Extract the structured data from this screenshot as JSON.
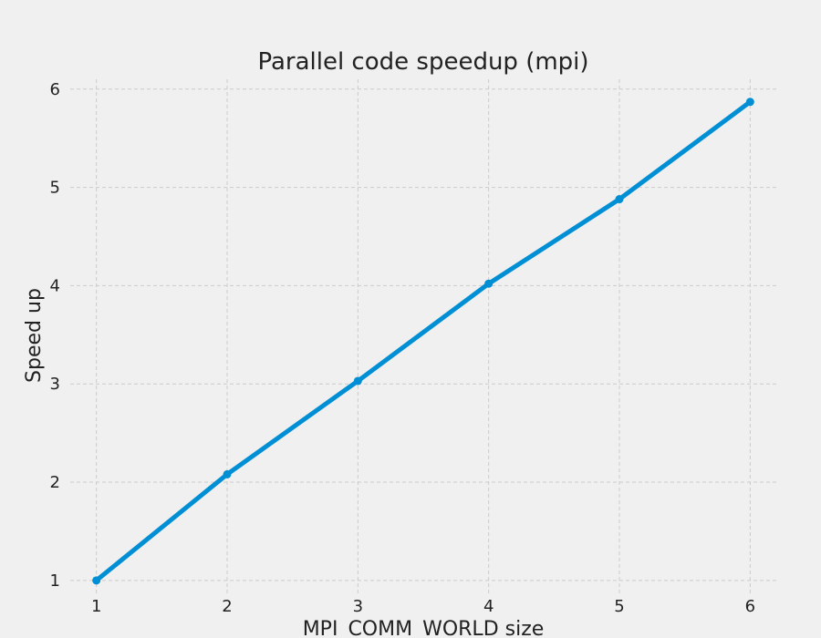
{
  "chart_data": {
    "type": "line",
    "title": "Parallel code speedup (mpi)",
    "xlabel": "MPI_COMM_WORLD size",
    "ylabel": "Speed up",
    "x": [
      1,
      2,
      3,
      4,
      5,
      6
    ],
    "series": [
      {
        "values": [
          1.0,
          2.08,
          3.03,
          4.02,
          4.88,
          5.87
        ],
        "color": "#008fd5"
      }
    ],
    "xlim": [
      0.8,
      6.2
    ],
    "ylim": [
      0.85,
      6.1
    ],
    "xticks": [
      1,
      2,
      3,
      4,
      5,
      6
    ],
    "yticks": [
      1,
      2,
      3,
      4,
      5,
      6
    ],
    "grid": true,
    "background": "#f0f0f0",
    "grid_color": "#cbcbcb"
  }
}
